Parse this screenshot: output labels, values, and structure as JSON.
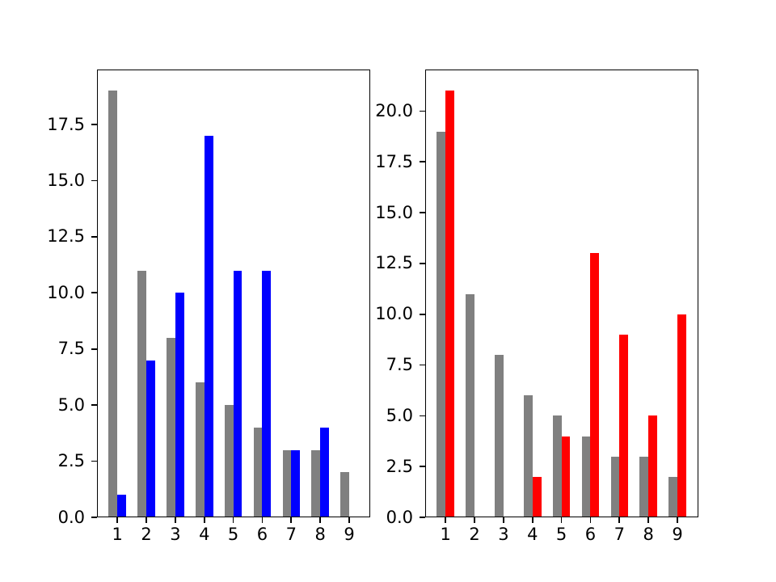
{
  "figure": {
    "background_color": "#ffffff",
    "axis_color": "#000000",
    "tick_label_color": "#000000"
  },
  "chart_data": [
    {
      "type": "bar",
      "title": "",
      "xlabel": "",
      "ylabel": "",
      "categories": [
        "1",
        "2",
        "3",
        "4",
        "5",
        "6",
        "7",
        "8",
        "9"
      ],
      "series": [
        {
          "name": "gray",
          "color": "#808080",
          "values": [
            19,
            11,
            8,
            6,
            5,
            4,
            3,
            3,
            2
          ]
        },
        {
          "name": "blue",
          "color": "#0000ff",
          "values": [
            1,
            7,
            10,
            17,
            11,
            11,
            3,
            4,
            0
          ]
        }
      ],
      "ylim": [
        0,
        19.95
      ],
      "yticks": [
        "0.0",
        "2.5",
        "5.0",
        "7.5",
        "10.0",
        "12.5",
        "15.0",
        "17.5"
      ],
      "grid": false,
      "legend": null
    },
    {
      "type": "bar",
      "title": "",
      "xlabel": "",
      "ylabel": "",
      "categories": [
        "1",
        "2",
        "3",
        "4",
        "5",
        "6",
        "7",
        "8",
        "9"
      ],
      "series": [
        {
          "name": "gray",
          "color": "#808080",
          "values": [
            19,
            11,
            8,
            6,
            5,
            4,
            3,
            3,
            2
          ]
        },
        {
          "name": "red",
          "color": "#ff0000",
          "values": [
            21,
            0,
            0,
            2,
            4,
            13,
            9,
            5,
            10
          ]
        }
      ],
      "ylim": [
        0,
        22.05
      ],
      "yticks": [
        "0.0",
        "2.5",
        "5.0",
        "7.5",
        "10.0",
        "12.5",
        "15.0",
        "17.5",
        "20.0"
      ],
      "grid": false,
      "legend": null
    }
  ]
}
